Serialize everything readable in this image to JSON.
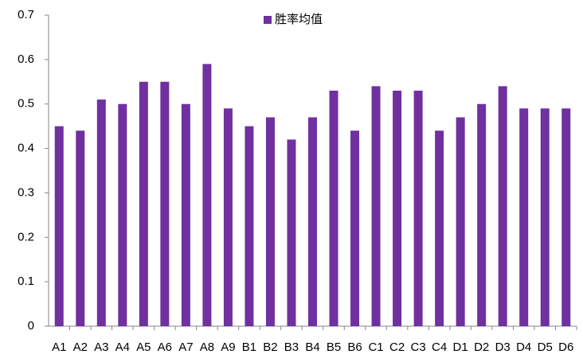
{
  "chart_data": {
    "type": "bar",
    "categories": [
      "A1",
      "A2",
      "A3",
      "A4",
      "A5",
      "A6",
      "A7",
      "A8",
      "A9",
      "B1",
      "B2",
      "B3",
      "B4",
      "B5",
      "B6",
      "C1",
      "C2",
      "C3",
      "C4",
      "D1",
      "D2",
      "D3",
      "D4",
      "D5",
      "D6"
    ],
    "series": [
      {
        "name": "胜率均值",
        "color": "#7030a0",
        "values": [
          0.45,
          0.44,
          0.51,
          0.5,
          0.55,
          0.55,
          0.5,
          0.59,
          0.49,
          0.45,
          0.47,
          0.42,
          0.47,
          0.53,
          0.44,
          0.54,
          0.53,
          0.53,
          0.44,
          0.47,
          0.5,
          0.54,
          0.49,
          0.49,
          0.49
        ]
      }
    ],
    "ylim": [
      0,
      0.7
    ],
    "yticks": [
      0,
      0.1,
      0.2,
      0.3,
      0.4,
      0.5,
      0.6,
      0.7
    ],
    "grid": false,
    "legend": "top"
  }
}
